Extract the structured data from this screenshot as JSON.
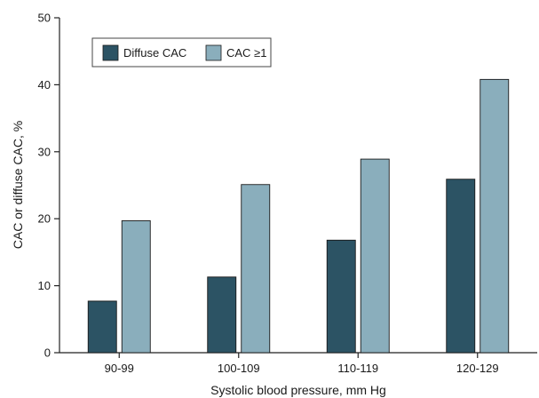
{
  "chart_data": {
    "type": "bar",
    "title": "",
    "xlabel": "Systolic blood pressure, mm Hg",
    "ylabel": "CAC or diffuse CAC, %",
    "categories": [
      "90-99",
      "100-109",
      "110-119",
      "120-129"
    ],
    "series": [
      {
        "name": "Diffuse CAC",
        "values": [
          7.7,
          11.3,
          16.8,
          25.9
        ],
        "color": "#2c5364"
      },
      {
        "name": "CAC ≥1",
        "values": [
          19.7,
          25.1,
          28.9,
          40.8
        ],
        "color": "#8aaebc"
      }
    ],
    "ylim": [
      0,
      50
    ],
    "yticks": [
      "0",
      "10",
      "20",
      "30",
      "40",
      "50"
    ],
    "grid": false,
    "legend_position": "top-left"
  }
}
